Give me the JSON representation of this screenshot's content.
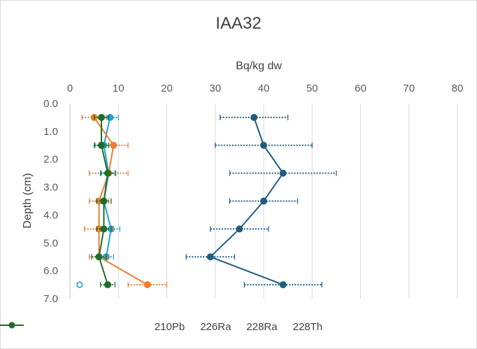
{
  "chart_data": {
    "type": "scatter",
    "title": "IAA32",
    "xlabel": "Bq/kg dw",
    "ylabel": "Depth (cm)",
    "xlim": [
      0,
      80
    ],
    "ylim": [
      0,
      7
    ],
    "x_ticks": [
      "0",
      "10",
      "20",
      "30",
      "40",
      "50",
      "60",
      "70",
      "80"
    ],
    "y_ticks": [
      "0.0",
      "1.0",
      "2.0",
      "3.0",
      "4.0",
      "5.0",
      "6.0",
      "7.0"
    ],
    "series": [
      {
        "name": "210Pb",
        "color": "#1f5c80",
        "points": [
          {
            "x": 38,
            "y": 0.5,
            "err": 7
          },
          {
            "x": 40,
            "y": 1.5,
            "err": 10
          },
          {
            "x": 44,
            "y": 2.5,
            "err": 11
          },
          {
            "x": 40,
            "y": 3.5,
            "err": 7
          },
          {
            "x": 35,
            "y": 4.5,
            "err": 6
          },
          {
            "x": 29,
            "y": 5.5,
            "err": 5
          },
          {
            "x": 44,
            "y": 6.5,
            "err": 8
          }
        ]
      },
      {
        "name": "226Ra",
        "color": "#1ea0dc",
        "points": [
          {
            "x": 8.3,
            "y": 0.5,
            "err": 1.7
          },
          {
            "x": 7.0,
            "y": 1.5,
            "err": 1.8
          },
          {
            "x": 8.0,
            "y": 2.5,
            "err": 1.5
          },
          {
            "x": 7.0,
            "y": 3.5,
            "err": 1.5
          },
          {
            "x": 8.5,
            "y": 4.5,
            "err": 1.8
          },
          {
            "x": 7.5,
            "y": 5.5,
            "err": 1.5
          }
        ],
        "outlier": {
          "x": 2,
          "y": 6.5
        }
      },
      {
        "name": "228Ra",
        "color": "#ed7d31",
        "points": [
          {
            "x": 5.0,
            "y": 0.5,
            "err": 2.5
          },
          {
            "x": 9.0,
            "y": 1.5,
            "err": 3.0
          },
          {
            "x": 8.0,
            "y": 2.5,
            "err": 4.0
          },
          {
            "x": 6.0,
            "y": 3.5,
            "err": 2.0
          },
          {
            "x": 6.0,
            "y": 4.5,
            "err": 3.0
          },
          {
            "x": 6.0,
            "y": 5.5,
            "err": 2.0
          },
          {
            "x": 16.0,
            "y": 6.5,
            "err": 4.0
          }
        ]
      },
      {
        "name": "228Th",
        "color": "#1e6e28",
        "points": [
          {
            "x": 6.5,
            "y": 0.5,
            "err": 1.5
          },
          {
            "x": 6.5,
            "y": 1.5,
            "err": 1.5
          },
          {
            "x": 7.8,
            "y": 2.5,
            "err": 1.5
          },
          {
            "x": 7.0,
            "y": 3.5,
            "err": 1.5
          },
          {
            "x": 7.0,
            "y": 4.5,
            "err": 1.5
          },
          {
            "x": 6.0,
            "y": 5.5,
            "err": 1.5
          },
          {
            "x": 7.8,
            "y": 6.5,
            "err": 1.5
          }
        ]
      }
    ]
  }
}
